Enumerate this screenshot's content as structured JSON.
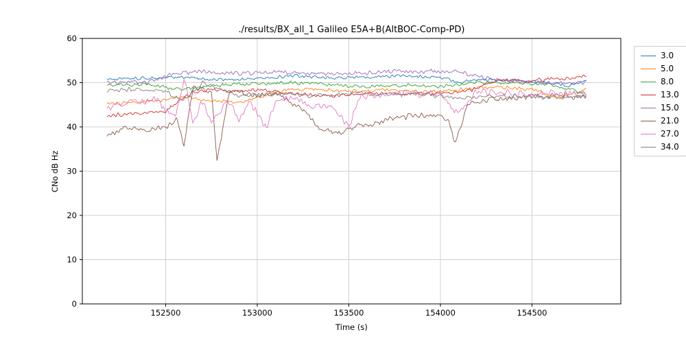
{
  "figure": {
    "title": "./results/BX_all_1 Galileo E5A+B(AltBOC-Comp-PD)",
    "xlabel": "Time (s)",
    "ylabel": "CNo dB Hz"
  },
  "chart_data": {
    "type": "line",
    "title": "./results/BX_all_1 Galileo E5A+B(AltBOC-Comp-PD)",
    "xlabel": "Time (s)",
    "ylabel": "CNo dB Hz",
    "xlim": [
      152045,
      154985
    ],
    "ylim": [
      0,
      60
    ],
    "xticks": [
      152500,
      153000,
      153500,
      154000,
      154500
    ],
    "yticks": [
      0,
      10,
      20,
      30,
      40,
      50,
      60
    ],
    "grid": true,
    "legend_position": "outside-right",
    "x_start": 152180,
    "x_end": 154800,
    "series": [
      {
        "name": "3.0",
        "color": "#1f77b4",
        "noise": 0.45,
        "points": [
          [
            152180,
            50.8
          ],
          [
            152400,
            51.0
          ],
          [
            152600,
            51.2
          ],
          [
            152800,
            50.6
          ],
          [
            153000,
            51.0
          ],
          [
            153200,
            51.5
          ],
          [
            153400,
            51.0
          ],
          [
            153600,
            51.3
          ],
          [
            153800,
            51.5
          ],
          [
            154000,
            51.2
          ],
          [
            154100,
            50.0
          ],
          [
            154200,
            50.6
          ],
          [
            154400,
            50.5
          ],
          [
            154600,
            50.0
          ],
          [
            154700,
            49.4
          ],
          [
            154800,
            50.5
          ]
        ]
      },
      {
        "name": "5.0",
        "color": "#ff7f0e",
        "noise": 0.5,
        "points": [
          [
            152180,
            45.0
          ],
          [
            152300,
            45.5
          ],
          [
            152500,
            46.0
          ],
          [
            152600,
            47.0
          ],
          [
            152700,
            46.0
          ],
          [
            152900,
            45.5
          ],
          [
            153050,
            47.0
          ],
          [
            153150,
            48.5
          ],
          [
            153300,
            48.5
          ],
          [
            153500,
            48.0
          ],
          [
            153700,
            48.5
          ],
          [
            153900,
            48.0
          ],
          [
            154100,
            48.5
          ],
          [
            154300,
            49.0
          ],
          [
            154500,
            48.5
          ],
          [
            154650,
            46.5
          ],
          [
            154800,
            48.5
          ]
        ]
      },
      {
        "name": "8.0",
        "color": "#2ca02c",
        "noise": 0.5,
        "points": [
          [
            152180,
            49.5
          ],
          [
            152400,
            49.5
          ],
          [
            152600,
            48.5
          ],
          [
            152800,
            49.5
          ],
          [
            153000,
            49.8
          ],
          [
            153200,
            50.0
          ],
          [
            153400,
            49.5
          ],
          [
            153600,
            49.0
          ],
          [
            153800,
            49.5
          ],
          [
            154000,
            49.0
          ],
          [
            154200,
            50.0
          ],
          [
            154400,
            50.0
          ],
          [
            154600,
            49.5
          ],
          [
            154800,
            47.5
          ]
        ]
      },
      {
        "name": "13.0",
        "color": "#d62728",
        "noise": 0.5,
        "points": [
          [
            152180,
            42.5
          ],
          [
            152300,
            43.0
          ],
          [
            152500,
            43.5
          ],
          [
            152580,
            46.0
          ],
          [
            152650,
            47.8
          ],
          [
            152750,
            48.5
          ],
          [
            152850,
            48.0
          ],
          [
            153000,
            48.5
          ],
          [
            153200,
            47.5
          ],
          [
            153400,
            47.0
          ],
          [
            153600,
            47.5
          ],
          [
            153800,
            47.5
          ],
          [
            154000,
            47.5
          ],
          [
            154150,
            48.0
          ],
          [
            154300,
            50.5
          ],
          [
            154500,
            50.5
          ],
          [
            154700,
            51.0
          ],
          [
            154800,
            51.5
          ]
        ]
      },
      {
        "name": "15.0",
        "color": "#9467bd",
        "noise": 0.6,
        "points": [
          [
            152180,
            50.0
          ],
          [
            152400,
            50.0
          ],
          [
            152550,
            52.0
          ],
          [
            152700,
            52.6
          ],
          [
            152900,
            52.0
          ],
          [
            153100,
            52.5
          ],
          [
            153300,
            52.0
          ],
          [
            153500,
            52.0
          ],
          [
            153700,
            52.5
          ],
          [
            153900,
            52.5
          ],
          [
            154100,
            52.5
          ],
          [
            154250,
            51.0
          ],
          [
            154400,
            50.5
          ],
          [
            154600,
            50.0
          ],
          [
            154800,
            50.0
          ]
        ]
      },
      {
        "name": "21.0",
        "color": "#8c564b",
        "noise": 0.8,
        "points": [
          [
            152180,
            37.5
          ],
          [
            152250,
            39.5
          ],
          [
            152350,
            39.5
          ],
          [
            152500,
            39.5
          ],
          [
            152560,
            42.0
          ],
          [
            152600,
            36.0
          ],
          [
            152650,
            49.0
          ],
          [
            152750,
            48.0
          ],
          [
            152780,
            32.5
          ],
          [
            152850,
            48.5
          ],
          [
            153000,
            47.0
          ],
          [
            153100,
            47.5
          ],
          [
            153250,
            44.0
          ],
          [
            153350,
            39.5
          ],
          [
            153450,
            38.5
          ],
          [
            153550,
            40.0
          ],
          [
            153700,
            41.5
          ],
          [
            153850,
            42.5
          ],
          [
            153950,
            43.0
          ],
          [
            154050,
            41.0
          ],
          [
            154080,
            36.0
          ],
          [
            154150,
            45.0
          ],
          [
            154250,
            46.0
          ],
          [
            154400,
            46.5
          ],
          [
            154600,
            47.0
          ],
          [
            154800,
            47.0
          ]
        ]
      },
      {
        "name": "27.0",
        "color": "#e377c2",
        "noise": 1.0,
        "points": [
          [
            152180,
            44.0
          ],
          [
            152300,
            46.0
          ],
          [
            152450,
            46.0
          ],
          [
            152550,
            42.0
          ],
          [
            152600,
            51.0
          ],
          [
            152650,
            41.0
          ],
          [
            152700,
            46.0
          ],
          [
            152750,
            41.5
          ],
          [
            152850,
            46.0
          ],
          [
            152900,
            41.0
          ],
          [
            152950,
            46.0
          ],
          [
            153050,
            40.0
          ],
          [
            153100,
            46.0
          ],
          [
            153200,
            46.5
          ],
          [
            153300,
            45.0
          ],
          [
            153400,
            44.5
          ],
          [
            153500,
            40.0
          ],
          [
            153550,
            46.5
          ],
          [
            153650,
            47.0
          ],
          [
            153800,
            47.5
          ],
          [
            154000,
            47.5
          ],
          [
            154100,
            43.0
          ],
          [
            154200,
            48.0
          ],
          [
            154400,
            47.5
          ],
          [
            154600,
            47.5
          ],
          [
            154800,
            47.5
          ]
        ]
      },
      {
        "name": "34.0",
        "color": "#7f7f7f",
        "noise": 0.6,
        "points": [
          [
            152180,
            48.0
          ],
          [
            152300,
            48.5
          ],
          [
            152500,
            48.0
          ],
          [
            152600,
            46.0
          ],
          [
            152700,
            50.0
          ],
          [
            152900,
            47.0
          ],
          [
            153100,
            47.5
          ],
          [
            153300,
            47.0
          ],
          [
            153500,
            47.5
          ],
          [
            153700,
            47.5
          ],
          [
            153900,
            47.5
          ],
          [
            154100,
            46.5
          ],
          [
            154300,
            47.0
          ],
          [
            154500,
            47.0
          ],
          [
            154700,
            46.5
          ],
          [
            154800,
            47.0
          ]
        ]
      }
    ]
  }
}
